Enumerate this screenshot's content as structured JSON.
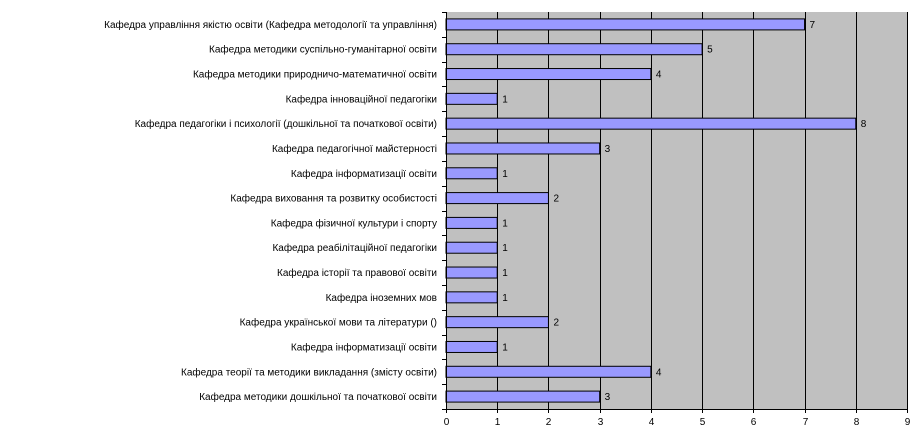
{
  "chart_data": {
    "type": "bar",
    "orientation": "horizontal",
    "categories": [
      "Кафедра управління якістю освіти (Кафедра методології та управління)",
      "Кафедра методики суспільно-гуманітарної освіти",
      "Кафедра методики природничо-математичної освіти",
      "Кафедра інноваційної педагогіки",
      "Кафедра педагогіки і психології (дошкільної та початкової освіти)",
      "Кафедра педагогічної майстерності",
      "Кафедра інформатизації освіти",
      "Кафедра виховання та розвитку особистості",
      "Кафедра фізичної культури і спорту",
      "Кафедра реабілітаційної педагогіки",
      "Кафедра історії та правової освіти",
      "Кафедра іноземних мов",
      "Кафедра української мови та літератури ()",
      "Кафедра  інформатизації освіти",
      "Кафедра теорії та методики викладання (змісту освіти)",
      "Кафедра методики дошкільної та початкової освіти"
    ],
    "values": [
      7,
      5,
      4,
      1,
      8,
      3,
      1,
      2,
      1,
      1,
      1,
      1,
      2,
      1,
      4,
      3
    ],
    "xlim": [
      0,
      9
    ],
    "xticks": [
      "0",
      "1",
      "2",
      "3",
      "4",
      "5",
      "6",
      "7",
      "8",
      "9"
    ],
    "data_labels": [
      "7",
      "5",
      "4",
      "1",
      "8",
      "3",
      "1",
      "2",
      "1",
      "1",
      "1",
      "1",
      "2",
      "1",
      "4",
      "3"
    ],
    "title": "",
    "xlabel": "",
    "ylabel": "",
    "grid": "vertical",
    "legend": "none",
    "colors": {
      "bar_fill": "#9999ff",
      "bar_stroke": "#000000",
      "plot_background": "#c0c0c0",
      "gridline": "#000000"
    }
  }
}
